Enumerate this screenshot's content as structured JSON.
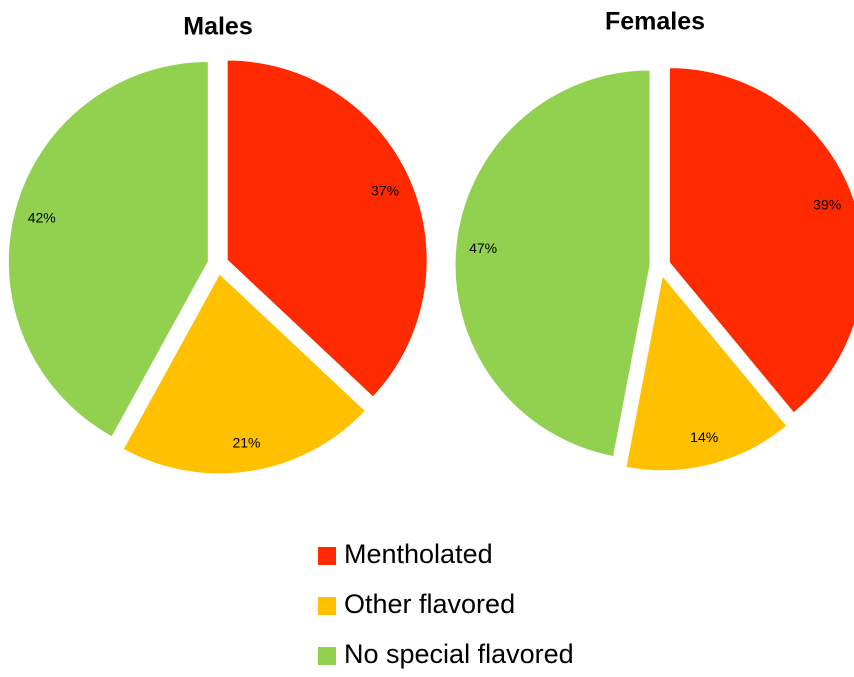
{
  "chart_data": [
    {
      "type": "pie",
      "title": "Males",
      "categories": [
        "Mentholated",
        "Other flavored",
        "No special flavored"
      ],
      "values": [
        37,
        21,
        42
      ],
      "value_labels": [
        "37%",
        "21%",
        "42%"
      ],
      "colors": [
        "#ff2a00",
        "#ffc000",
        "#92d050"
      ]
    },
    {
      "type": "pie",
      "title": "Females",
      "categories": [
        "Mentholated",
        "Other flavored",
        "No special flavored"
      ],
      "values": [
        39,
        14,
        47
      ],
      "value_labels": [
        "39%",
        "14%",
        "47%"
      ],
      "colors": [
        "#ff2a00",
        "#ffc000",
        "#92d050"
      ]
    }
  ]
}
